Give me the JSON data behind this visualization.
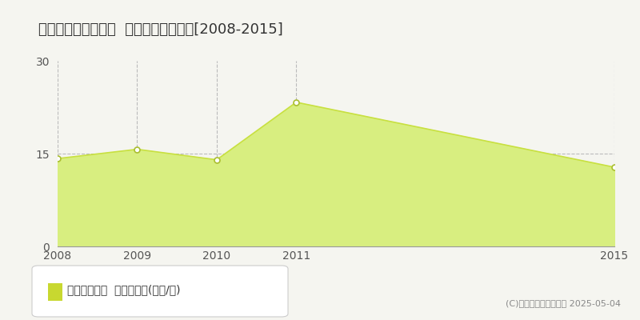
{
  "title": "東田川郡庄内町余目  収益物件価格推移[2008-2015]",
  "years": [
    2008,
    2009,
    2010,
    2011,
    2015
  ],
  "values": [
    14.2,
    15.7,
    14.0,
    23.3,
    12.8
  ],
  "ylim": [
    0,
    30
  ],
  "yticks": [
    0,
    15,
    30
  ],
  "line_color": "#c8e040",
  "fill_color": "#d8ee80",
  "marker_facecolor": "#ffffff",
  "marker_edgecolor": "#aabe30",
  "grid_color": "#bbbbbb",
  "background_color": "#f5f5f0",
  "plot_bg_color": "#f5f5f0",
  "legend_label": "収益物件価格  平均坪単価(万円/坪)",
  "legend_marker_color": "#c8d830",
  "copyright_text": "(C)土地価格ドットコム 2025-05-04",
  "title_fontsize": 13,
  "axis_fontsize": 10,
  "legend_fontsize": 10
}
